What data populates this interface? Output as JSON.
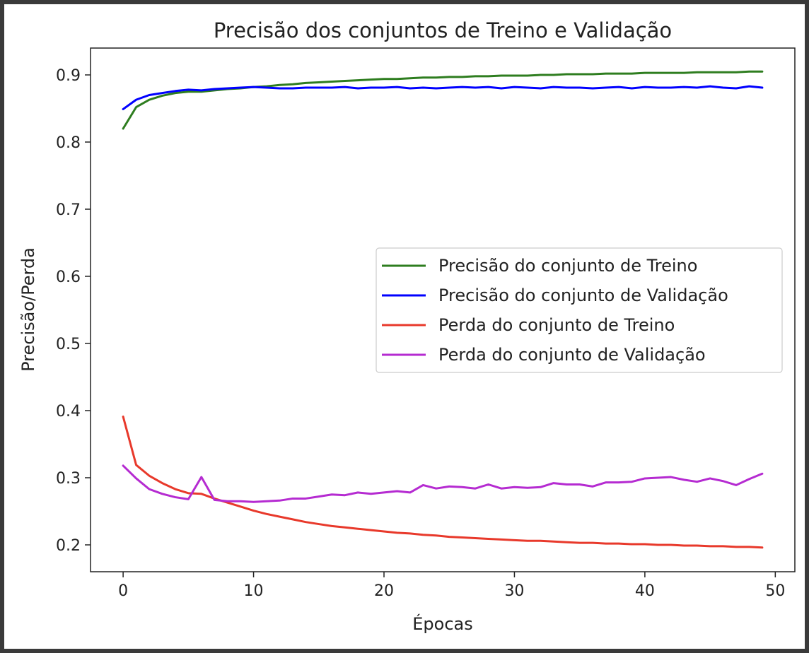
{
  "chart_data": {
    "type": "line",
    "title": "Precisão dos conjuntos de Treino e Validação",
    "xlabel": "Épocas",
    "ylabel": "Precisão/Perda",
    "xlim": [
      -2.5,
      51.5
    ],
    "ylim": [
      0.16,
      0.94
    ],
    "xticks": [
      0,
      10,
      20,
      30,
      40,
      50
    ],
    "yticks": [
      0.2,
      0.3,
      0.4,
      0.5,
      0.6,
      0.7,
      0.8,
      0.9
    ],
    "xtick_labels": [
      "0",
      "10",
      "20",
      "30",
      "40",
      "50"
    ],
    "ytick_labels": [
      "0.2",
      "0.3",
      "0.4",
      "0.5",
      "0.6",
      "0.7",
      "0.8",
      "0.9"
    ],
    "grid": false,
    "legend": "center-right",
    "x": [
      0,
      1,
      2,
      3,
      4,
      5,
      6,
      7,
      8,
      9,
      10,
      11,
      12,
      13,
      14,
      15,
      16,
      17,
      18,
      19,
      20,
      21,
      22,
      23,
      24,
      25,
      26,
      27,
      28,
      29,
      30,
      31,
      32,
      33,
      34,
      35,
      36,
      37,
      38,
      39,
      40,
      41,
      42,
      43,
      44,
      45,
      46,
      47,
      48,
      49
    ],
    "series": [
      {
        "name": "Precisão do conjunto de Treino",
        "color": "#2e7d1f",
        "values": [
          0.82,
          0.852,
          0.863,
          0.869,
          0.873,
          0.875,
          0.875,
          0.877,
          0.879,
          0.88,
          0.882,
          0.883,
          0.885,
          0.886,
          0.888,
          0.889,
          0.89,
          0.891,
          0.892,
          0.893,
          0.894,
          0.894,
          0.895,
          0.896,
          0.896,
          0.897,
          0.897,
          0.898,
          0.898,
          0.899,
          0.899,
          0.899,
          0.9,
          0.9,
          0.901,
          0.901,
          0.901,
          0.902,
          0.902,
          0.902,
          0.903,
          0.903,
          0.903,
          0.903,
          0.904,
          0.904,
          0.904,
          0.904,
          0.905,
          0.905
        ]
      },
      {
        "name": "Precisão do conjunto de Validação",
        "color": "#0000ff",
        "values": [
          0.849,
          0.863,
          0.87,
          0.873,
          0.876,
          0.878,
          0.877,
          0.879,
          0.88,
          0.881,
          0.882,
          0.881,
          0.88,
          0.88,
          0.881,
          0.881,
          0.881,
          0.882,
          0.88,
          0.881,
          0.881,
          0.882,
          0.88,
          0.881,
          0.88,
          0.881,
          0.882,
          0.881,
          0.882,
          0.88,
          0.882,
          0.881,
          0.88,
          0.882,
          0.881,
          0.881,
          0.88,
          0.881,
          0.882,
          0.88,
          0.882,
          0.881,
          0.881,
          0.882,
          0.881,
          0.883,
          0.881,
          0.88,
          0.883,
          0.881
        ]
      },
      {
        "name": "Perda do conjunto de Treino",
        "color": "#e8392b",
        "values": [
          0.391,
          0.319,
          0.303,
          0.292,
          0.283,
          0.277,
          0.276,
          0.269,
          0.263,
          0.257,
          0.251,
          0.246,
          0.242,
          0.238,
          0.234,
          0.231,
          0.228,
          0.226,
          0.224,
          0.222,
          0.22,
          0.218,
          0.217,
          0.215,
          0.214,
          0.212,
          0.211,
          0.21,
          0.209,
          0.208,
          0.207,
          0.206,
          0.206,
          0.205,
          0.204,
          0.203,
          0.203,
          0.202,
          0.202,
          0.201,
          0.201,
          0.2,
          0.2,
          0.199,
          0.199,
          0.198,
          0.198,
          0.197,
          0.197,
          0.196
        ]
      },
      {
        "name": "Perda do conjunto de Validação",
        "color": "#b52bd1",
        "values": [
          0.318,
          0.299,
          0.283,
          0.276,
          0.271,
          0.268,
          0.301,
          0.267,
          0.265,
          0.265,
          0.264,
          0.265,
          0.266,
          0.269,
          0.269,
          0.272,
          0.275,
          0.274,
          0.278,
          0.276,
          0.278,
          0.28,
          0.278,
          0.289,
          0.284,
          0.287,
          0.286,
          0.284,
          0.29,
          0.284,
          0.286,
          0.285,
          0.286,
          0.292,
          0.29,
          0.29,
          0.287,
          0.293,
          0.293,
          0.294,
          0.299,
          0.3,
          0.301,
          0.297,
          0.294,
          0.299,
          0.295,
          0.289,
          0.298,
          0.306
        ]
      }
    ]
  }
}
